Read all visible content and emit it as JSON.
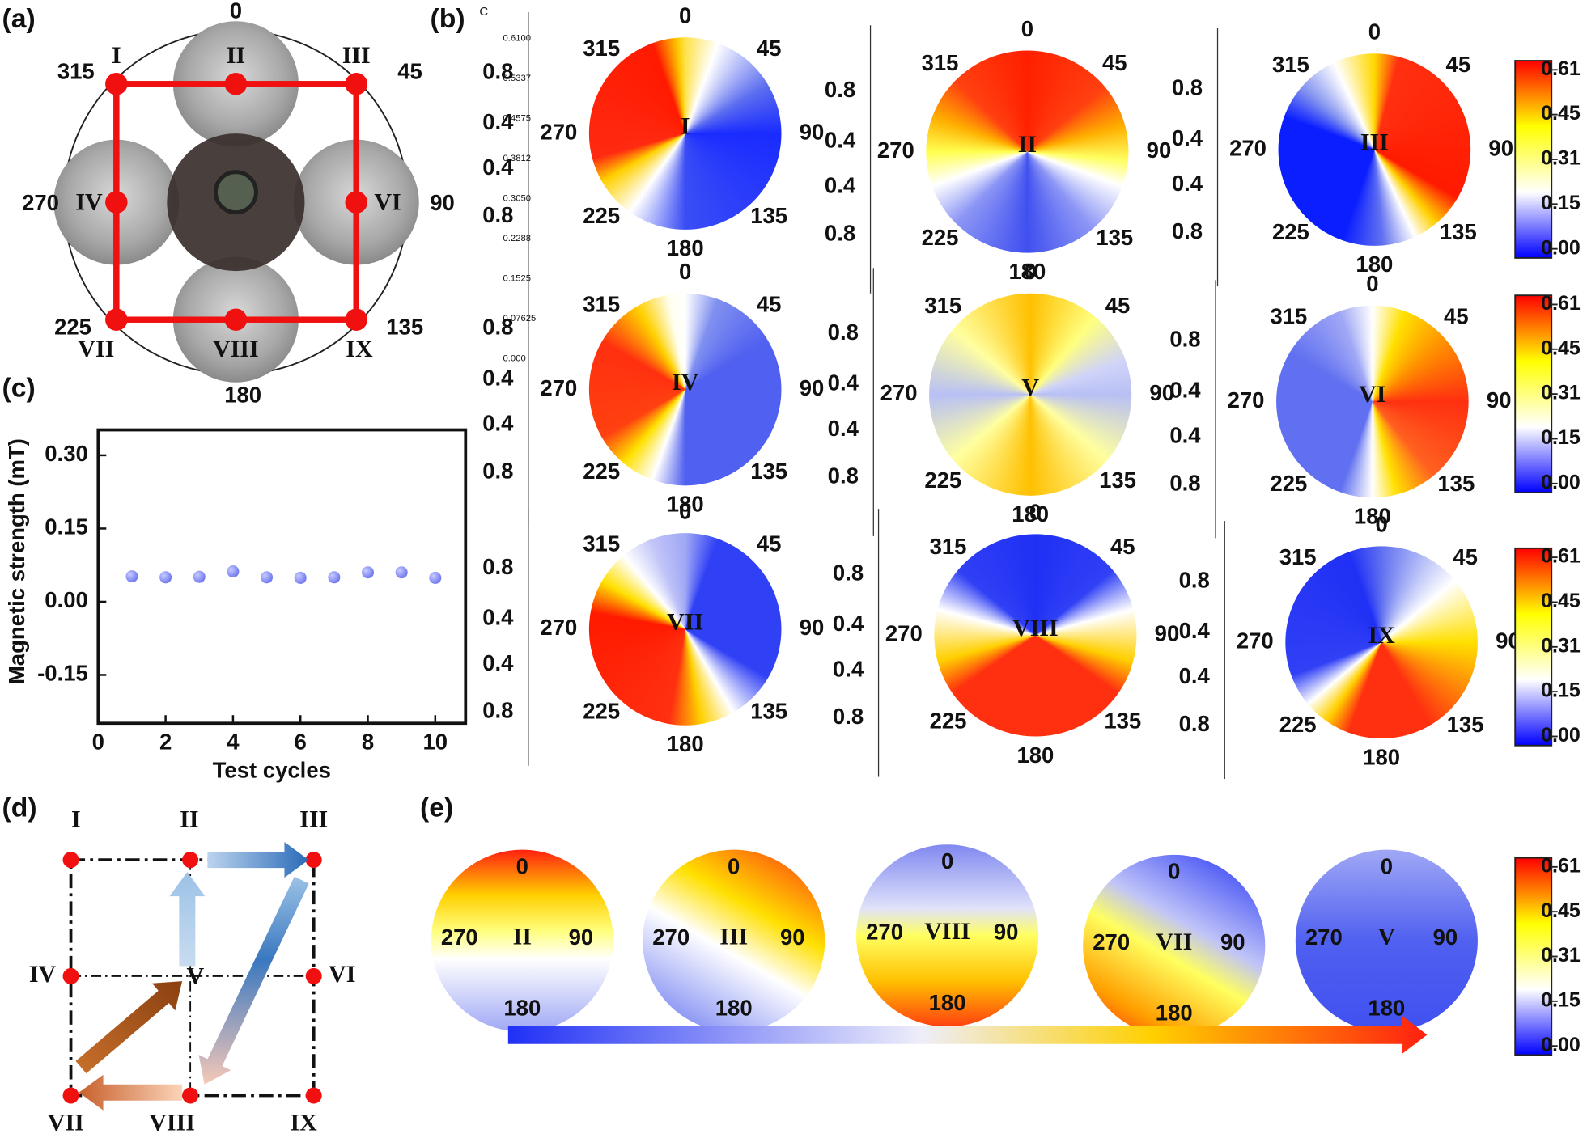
{
  "panel_labels": {
    "a": "(a)",
    "b": "(b)",
    "b_sup": "C",
    "c": "(c)",
    "d": "(d)",
    "e": "(e)"
  },
  "panel_a": {
    "angles": [
      "0",
      "45",
      "90",
      "135",
      "180",
      "225",
      "270",
      "315"
    ],
    "points": [
      "I",
      "II",
      "III",
      "IV",
      "VI",
      "VII",
      "VIII",
      "IX"
    ]
  },
  "polar_maps": {
    "angles": [
      "0",
      "45",
      "90",
      "135",
      "180",
      "225",
      "270",
      "315"
    ],
    "side_axis": [
      "0.8",
      "0.4",
      "0.4",
      "0.8"
    ],
    "scale_labels": [
      "0.6100",
      "0.5337",
      "0.4575",
      "0.3812",
      "0.3050",
      "0.2288",
      "0.1525",
      "0.07625",
      "0.000"
    ],
    "maps": [
      {
        "label": "I",
        "stops": [
          [
            0,
            "#ffe24a"
          ],
          [
            20,
            "#ffffff"
          ],
          [
            60,
            "#5a6cf0"
          ],
          [
            90,
            "#1a2bff"
          ],
          [
            180,
            "#3a4df5"
          ],
          [
            215,
            "#ffffff"
          ],
          [
            240,
            "#ffd000"
          ],
          [
            255,
            "#ff2a10"
          ],
          [
            340,
            "#ff1a00"
          ],
          [
            355,
            "#ffc800"
          ],
          [
            360,
            "#ffe24a"
          ]
        ]
      },
      {
        "label": "II",
        "stops": [
          [
            0,
            "#ff2000"
          ],
          [
            50,
            "#ff4010"
          ],
          [
            75,
            "#ffb000"
          ],
          [
            95,
            "#ffff60"
          ],
          [
            110,
            "#ffffff"
          ],
          [
            140,
            "#8c96f5"
          ],
          [
            180,
            "#4050f0"
          ],
          [
            225,
            "#8c96f5"
          ],
          [
            250,
            "#ffffff"
          ],
          [
            270,
            "#ffff50"
          ],
          [
            290,
            "#ffb000"
          ],
          [
            315,
            "#ff4010"
          ],
          [
            360,
            "#ff2000"
          ]
        ]
      },
      {
        "label": "III",
        "stops": [
          [
            0,
            "#ffd800"
          ],
          [
            15,
            "#ff3010"
          ],
          [
            120,
            "#ff1a00"
          ],
          [
            140,
            "#ffd000"
          ],
          [
            155,
            "#ffffff"
          ],
          [
            175,
            "#6070f0"
          ],
          [
            200,
            "#0a1eff"
          ],
          [
            290,
            "#0a1eff"
          ],
          [
            310,
            "#8090f0"
          ],
          [
            335,
            "#ffffff"
          ],
          [
            360,
            "#ffd800"
          ]
        ]
      },
      {
        "label": "IV",
        "stops": [
          [
            0,
            "#ffffff"
          ],
          [
            20,
            "#8090f0"
          ],
          [
            60,
            "#5060f0"
          ],
          [
            180,
            "#5060f0"
          ],
          [
            200,
            "#ffffff"
          ],
          [
            220,
            "#ffe000"
          ],
          [
            240,
            "#ff4010"
          ],
          [
            300,
            "#ff3010"
          ],
          [
            330,
            "#ffd000"
          ],
          [
            350,
            "#fffff0"
          ],
          [
            360,
            "#ffffff"
          ]
        ]
      },
      {
        "label": "V",
        "stops": [
          [
            0,
            "#ffc000"
          ],
          [
            40,
            "#ffff80"
          ],
          [
            70,
            "#d0d4f8"
          ],
          [
            90,
            "#b8c0f5"
          ],
          [
            130,
            "#ffffa0"
          ],
          [
            180,
            "#ffc000"
          ],
          [
            230,
            "#ffffa0"
          ],
          [
            270,
            "#b8c0f5"
          ],
          [
            310,
            "#ffffa0"
          ],
          [
            360,
            "#ffc000"
          ]
        ]
      },
      {
        "label": "VI",
        "stops": [
          [
            0,
            "#ffffff"
          ],
          [
            20,
            "#ffe000"
          ],
          [
            50,
            "#ff9000"
          ],
          [
            90,
            "#ff3010"
          ],
          [
            140,
            "#ff6020"
          ],
          [
            165,
            "#ffe000"
          ],
          [
            180,
            "#ffffff"
          ],
          [
            200,
            "#6070f0"
          ],
          [
            300,
            "#6070f0"
          ],
          [
            340,
            "#a0a8f5"
          ],
          [
            360,
            "#ffffff"
          ]
        ]
      },
      {
        "label": "VII",
        "stops": [
          [
            0,
            "#a0a8f5"
          ],
          [
            20,
            "#3040f5"
          ],
          [
            120,
            "#3040f5"
          ],
          [
            150,
            "#ffffff"
          ],
          [
            170,
            "#ffd000"
          ],
          [
            190,
            "#ff3010"
          ],
          [
            280,
            "#ff1a00"
          ],
          [
            300,
            "#ffe000"
          ],
          [
            320,
            "#ffffff"
          ],
          [
            340,
            "#c0c4f8"
          ],
          [
            360,
            "#a0a8f5"
          ]
        ]
      },
      {
        "label": "VIII",
        "stops": [
          [
            0,
            "#2030f5"
          ],
          [
            50,
            "#3040f5"
          ],
          [
            75,
            "#ffffff"
          ],
          [
            105,
            "#ffd000"
          ],
          [
            125,
            "#ff3010"
          ],
          [
            235,
            "#ff3010"
          ],
          [
            255,
            "#ffd000"
          ],
          [
            285,
            "#ffffff"
          ],
          [
            310,
            "#3040f5"
          ],
          [
            360,
            "#2030f5"
          ]
        ]
      },
      {
        "label": "IX",
        "stops": [
          [
            0,
            "#6070f0"
          ],
          [
            30,
            "#c0c8f8"
          ],
          [
            50,
            "#ffffff"
          ],
          [
            90,
            "#ffe000"
          ],
          [
            150,
            "#ff3010"
          ],
          [
            200,
            "#ff3010"
          ],
          [
            215,
            "#ffd000"
          ],
          [
            230,
            "#ffffff"
          ],
          [
            250,
            "#3040f5"
          ],
          [
            340,
            "#2030f5"
          ],
          [
            360,
            "#6070f0"
          ]
        ]
      }
    ]
  },
  "colorbar": {
    "ticks": [
      "0.61",
      "0.45",
      "0.31",
      "0.15",
      "0.00"
    ],
    "colors": [
      "#ff0000",
      "#ffff00",
      "#ffffff",
      "#0000ff"
    ]
  },
  "chart_data": {
    "type": "scatter",
    "xlabel": "Test cycles",
    "ylabel": "Magnetic strength (mT)",
    "x": [
      1,
      2,
      3,
      4,
      5,
      6,
      7,
      8,
      9,
      10
    ],
    "values": [
      0.052,
      0.05,
      0.051,
      0.062,
      0.05,
      0.049,
      0.05,
      0.06,
      0.06,
      0.049
    ],
    "color": "#6b74ee",
    "xlim": [
      0,
      10.9
    ],
    "ylim": [
      -0.249,
      0.352
    ],
    "xticks": [
      0,
      2,
      4,
      6,
      8,
      10
    ],
    "yticks": [
      {
        "value": -0.15,
        "label": "-0.15"
      },
      {
        "value": 0,
        "label": "0.00"
      },
      {
        "value": 0.15,
        "label": "0.15"
      },
      {
        "value": 0.3,
        "label": "0.30"
      }
    ]
  },
  "panel_d": {
    "nodes": [
      "I",
      "II",
      "III",
      "IV",
      "V",
      "VI",
      "VII",
      "VIII",
      "IX"
    ]
  },
  "panel_e": {
    "angles": [
      "0",
      "90",
      "180",
      "270"
    ],
    "disks": [
      {
        "label": "II",
        "direction": 180,
        "stops": [
          [
            0,
            "#ff2010"
          ],
          [
            25,
            "#ffd000"
          ],
          [
            45,
            "#ffff80"
          ],
          [
            60,
            "#ffffff"
          ],
          [
            100,
            "#a0a8f5"
          ]
        ]
      },
      {
        "label": "III",
        "direction": 210,
        "stops": [
          [
            0,
            "#ff3010"
          ],
          [
            35,
            "#ffe000"
          ],
          [
            55,
            "#ffffff"
          ],
          [
            100,
            "#6070f0"
          ]
        ]
      },
      {
        "label": "VIII",
        "direction": 180,
        "stops": [
          [
            0,
            "#8088f0"
          ],
          [
            35,
            "#e0e2fa"
          ],
          [
            50,
            "#ffff60"
          ],
          [
            75,
            "#ffc000"
          ],
          [
            100,
            "#ff4010"
          ]
        ]
      },
      {
        "label": "VII",
        "direction": 210,
        "stops": [
          [
            0,
            "#2030f5"
          ],
          [
            40,
            "#c0c4f8"
          ],
          [
            55,
            "#ffff60"
          ],
          [
            80,
            "#ffa000"
          ],
          [
            100,
            "#ff2010"
          ]
        ]
      },
      {
        "label": "V",
        "direction": 180,
        "stops": [
          [
            0,
            "#a0a8f5"
          ],
          [
            50,
            "#5060f0"
          ],
          [
            100,
            "#4050f0"
          ]
        ]
      }
    ]
  }
}
